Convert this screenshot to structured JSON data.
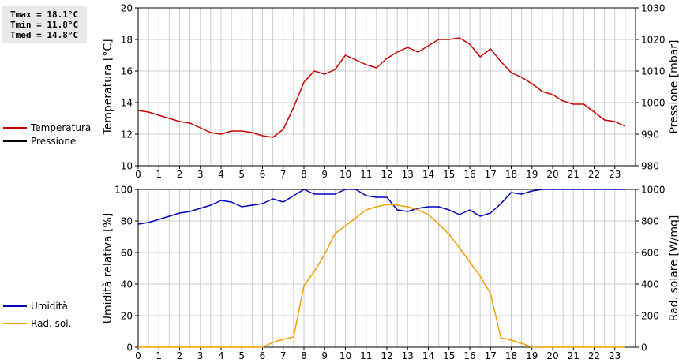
{
  "stats": {
    "tmax": "Tmax = 18.1°C",
    "tmin": "Tmin = 11.8°C",
    "tmed": "Tmed = 14.8°C"
  },
  "colors": {
    "temperature": "#cc0000",
    "pressure": "#000000",
    "humidity": "#0000bb",
    "solar": "#f0a000",
    "grid": "#cccccc"
  },
  "legend_top": [
    {
      "label": "Temperatura",
      "color": "#cc0000"
    },
    {
      "label": "Pressione",
      "color": "#000000"
    }
  ],
  "legend_bottom": [
    {
      "label": "Umidità",
      "color": "#0000bb"
    },
    {
      "label": "Rad. sol.",
      "color": "#f0a000"
    }
  ],
  "chart_data": [
    {
      "type": "line",
      "ylabel": "Temperatura [°C]",
      "y2label": "Pressione [mbar]",
      "xlim": [
        0,
        24
      ],
      "ylim": [
        10,
        20
      ],
      "y2lim": [
        980,
        1030
      ],
      "grid": true,
      "legend_position": "left",
      "x_ticks": [
        "0",
        "1",
        "2",
        "3",
        "4",
        "5",
        "6",
        "7",
        "8",
        "9",
        "10",
        "11",
        "12",
        "13",
        "14",
        "15",
        "16",
        "17",
        "18",
        "19",
        "20",
        "21",
        "22",
        "23"
      ],
      "y_ticks": [
        "10",
        "12",
        "14",
        "16",
        "18",
        "20"
      ],
      "y2_ticks": [
        "980",
        "990",
        "1000",
        "1010",
        "1020",
        "1030"
      ],
      "series": [
        {
          "name": "Temperatura",
          "axis": "left",
          "points": [
            [
              0,
              13.5
            ],
            [
              0.5,
              13.4
            ],
            [
              1,
              13.2
            ],
            [
              1.5,
              13.0
            ],
            [
              2,
              12.8
            ],
            [
              2.5,
              12.7
            ],
            [
              3,
              12.4
            ],
            [
              3.5,
              12.1
            ],
            [
              4,
              12.0
            ],
            [
              4.5,
              12.2
            ],
            [
              5,
              12.2
            ],
            [
              5.5,
              12.1
            ],
            [
              6,
              11.9
            ],
            [
              6.5,
              11.8
            ],
            [
              7,
              12.3
            ],
            [
              7.5,
              13.7
            ],
            [
              8,
              15.3
            ],
            [
              8.5,
              16.0
            ],
            [
              9,
              15.8
            ],
            [
              9.5,
              16.1
            ],
            [
              10,
              17.0
            ],
            [
              10.5,
              16.7
            ],
            [
              11,
              16.4
            ],
            [
              11.5,
              16.2
            ],
            [
              12,
              16.8
            ],
            [
              12.5,
              17.2
            ],
            [
              13,
              17.5
            ],
            [
              13.5,
              17.2
            ],
            [
              14,
              17.6
            ],
            [
              14.5,
              18.0
            ],
            [
              15,
              18.0
            ],
            [
              15.5,
              18.1
            ],
            [
              16,
              17.7
            ],
            [
              16.5,
              16.9
            ],
            [
              17,
              17.4
            ],
            [
              17.5,
              16.6
            ],
            [
              18,
              15.9
            ],
            [
              18.5,
              15.6
            ],
            [
              19,
              15.2
            ],
            [
              19.5,
              14.7
            ],
            [
              20,
              14.5
            ],
            [
              20.5,
              14.1
            ],
            [
              21,
              13.9
            ],
            [
              21.5,
              13.9
            ],
            [
              22,
              13.4
            ],
            [
              22.5,
              12.9
            ],
            [
              23,
              12.8
            ],
            [
              23.5,
              12.5
            ]
          ]
        },
        {
          "name": "Pressione",
          "axis": "right",
          "points": []
        }
      ]
    },
    {
      "type": "line",
      "ylabel": "Umidità relativa [%]",
      "y2label": "Rad. solare [W/mq]",
      "xlim": [
        0,
        24
      ],
      "ylim": [
        0,
        100
      ],
      "y2lim": [
        0,
        1000
      ],
      "grid": true,
      "legend_position": "left",
      "x_ticks": [
        "0",
        "1",
        "2",
        "3",
        "4",
        "5",
        "6",
        "7",
        "8",
        "9",
        "10",
        "11",
        "12",
        "13",
        "14",
        "15",
        "16",
        "17",
        "18",
        "19",
        "20",
        "21",
        "22",
        "23"
      ],
      "y_ticks": [
        "0",
        "20",
        "40",
        "60",
        "80",
        "100"
      ],
      "y2_ticks": [
        "0",
        "200",
        "400",
        "600",
        "800",
        "1000"
      ],
      "series": [
        {
          "name": "Umidità",
          "axis": "left",
          "points": [
            [
              0,
              78
            ],
            [
              0.5,
              79
            ],
            [
              1,
              81
            ],
            [
              1.5,
              83
            ],
            [
              2,
              85
            ],
            [
              2.5,
              86
            ],
            [
              3,
              88
            ],
            [
              3.5,
              90
            ],
            [
              4,
              93
            ],
            [
              4.5,
              92
            ],
            [
              5,
              89
            ],
            [
              5.5,
              90
            ],
            [
              6,
              91
            ],
            [
              6.5,
              94
            ],
            [
              7,
              92
            ],
            [
              7.5,
              96
            ],
            [
              8,
              100
            ],
            [
              8.5,
              97
            ],
            [
              9,
              97
            ],
            [
              9.5,
              97
            ],
            [
              10,
              100
            ],
            [
              10.5,
              100
            ],
            [
              11,
              96
            ],
            [
              11.5,
              95
            ],
            [
              12,
              95
            ],
            [
              12.5,
              87
            ],
            [
              13,
              86
            ],
            [
              13.5,
              88
            ],
            [
              14,
              89
            ],
            [
              14.5,
              89
            ],
            [
              15,
              87
            ],
            [
              15.5,
              84
            ],
            [
              16,
              87
            ],
            [
              16.5,
              83
            ],
            [
              17,
              85
            ],
            [
              17.5,
              91
            ],
            [
              18,
              98
            ],
            [
              18.5,
              97
            ],
            [
              19,
              99
            ],
            [
              19.5,
              100
            ],
            [
              20,
              100
            ],
            [
              21,
              100
            ],
            [
              22,
              100
            ],
            [
              23,
              100
            ],
            [
              23.5,
              100
            ]
          ]
        },
        {
          "name": "Rad. sol.",
          "axis": "right",
          "points": [
            [
              0,
              0
            ],
            [
              1,
              0
            ],
            [
              2,
              0
            ],
            [
              3,
              0
            ],
            [
              4,
              0
            ],
            [
              5,
              0
            ],
            [
              6,
              0
            ],
            [
              6.5,
              30
            ],
            [
              7,
              50
            ],
            [
              7.5,
              65
            ],
            [
              8,
              390
            ],
            [
              8.5,
              480
            ],
            [
              9,
              590
            ],
            [
              9.5,
              720
            ],
            [
              10,
              770
            ],
            [
              10.5,
              820
            ],
            [
              11,
              870
            ],
            [
              11.5,
              890
            ],
            [
              12,
              905
            ],
            [
              12.5,
              900
            ],
            [
              13,
              890
            ],
            [
              13.5,
              870
            ],
            [
              14,
              840
            ],
            [
              14.5,
              780
            ],
            [
              15,
              715
            ],
            [
              15.5,
              630
            ],
            [
              16,
              540
            ],
            [
              16.5,
              450
            ],
            [
              17,
              340
            ],
            [
              17.5,
              60
            ],
            [
              18,
              45
            ],
            [
              18.5,
              25
            ],
            [
              19,
              0
            ],
            [
              20,
              0
            ],
            [
              21,
              0
            ],
            [
              22,
              0
            ],
            [
              23,
              0
            ],
            [
              23.5,
              0
            ]
          ]
        }
      ]
    }
  ]
}
